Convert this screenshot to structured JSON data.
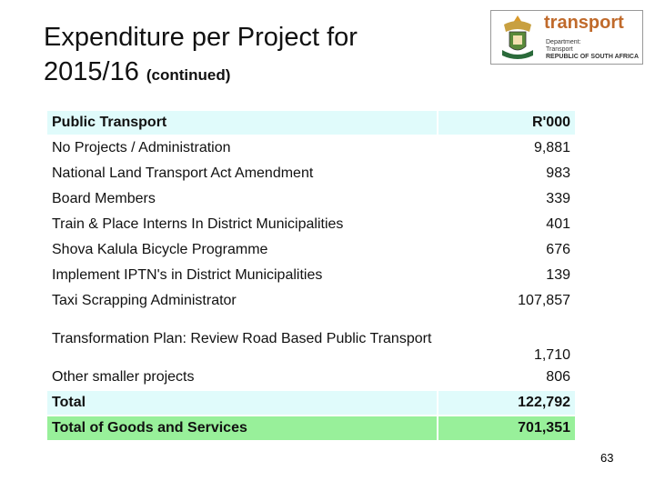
{
  "title": {
    "main": "Expenditure per Project for 2015/16",
    "suffix": "(continued)"
  },
  "logo": {
    "name": "transport",
    "lines": [
      "Department:",
      "Transport",
      "REPUBLIC OF SOUTH AFRICA"
    ]
  },
  "table": {
    "header": [
      "Public Transport",
      "R'000"
    ],
    "rows": [
      [
        "No Projects / Administration",
        "9,881"
      ],
      [
        "National Land Transport Act Amendment",
        "983"
      ],
      [
        "Board Members",
        "339"
      ],
      [
        "Train & Place Interns In District Municipalities",
        "401"
      ],
      [
        "Shova Kalula Bicycle Programme",
        "676"
      ],
      [
        "Implement IPTN's in District Municipalities",
        "139"
      ],
      [
        "Taxi Scrapping Administrator",
        "107,857"
      ],
      [
        "Transformation Plan: Review Road Based Public Transport",
        "1,710"
      ],
      [
        "Other smaller projects",
        "806"
      ]
    ],
    "total": [
      "Total",
      "122,792"
    ],
    "grand_total": [
      "Total of Goods and Services",
      "701,351"
    ]
  },
  "page_number": "63"
}
